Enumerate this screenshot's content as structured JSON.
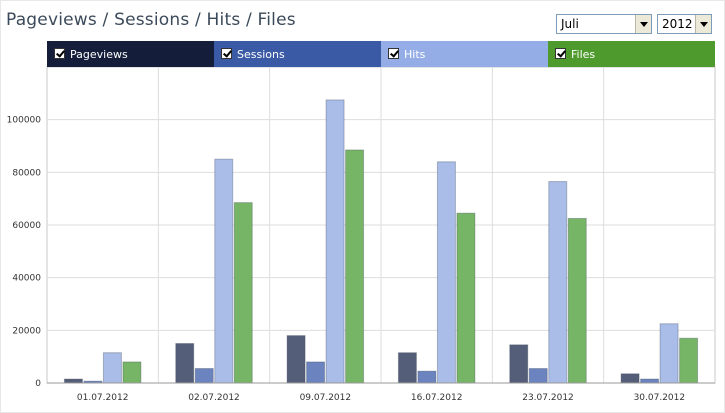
{
  "header": {
    "title": "Pageviews / Sessions / Hits / Files"
  },
  "filters": {
    "month": "Juli",
    "year": "2012"
  },
  "legend": [
    {
      "label": "Pageviews",
      "color": "#141e3a",
      "checked": true
    },
    {
      "label": "Sessions",
      "color": "#3a5aa6",
      "checked": true
    },
    {
      "label": "Hits",
      "color": "#94ade6",
      "checked": true
    },
    {
      "label": "Files",
      "color": "#4e9a2c",
      "checked": true
    }
  ],
  "chart_data": {
    "type": "bar",
    "categories": [
      "01.07.2012",
      "02.07.2012",
      "09.07.2012",
      "16.07.2012",
      "23.07.2012",
      "30.07.2012"
    ],
    "series": [
      {
        "name": "Pageviews",
        "color": "#555e78",
        "values": [
          1500,
          15000,
          18000,
          11500,
          14500,
          3500
        ]
      },
      {
        "name": "Sessions",
        "color": "#6b84bf",
        "values": [
          700,
          5500,
          8000,
          4500,
          5500,
          1500
        ]
      },
      {
        "name": "Hits",
        "color": "#a9bde8",
        "values": [
          11500,
          85000,
          107500,
          84000,
          76500,
          22500
        ]
      },
      {
        "name": "Files",
        "color": "#77b566",
        "values": [
          8000,
          68500,
          88500,
          64500,
          62500,
          17000
        ]
      }
    ],
    "ylim": [
      0,
      120000
    ],
    "yticks": [
      "0",
      "20000",
      "40000",
      "60000",
      "80000",
      "100000"
    ],
    "grid": true
  }
}
